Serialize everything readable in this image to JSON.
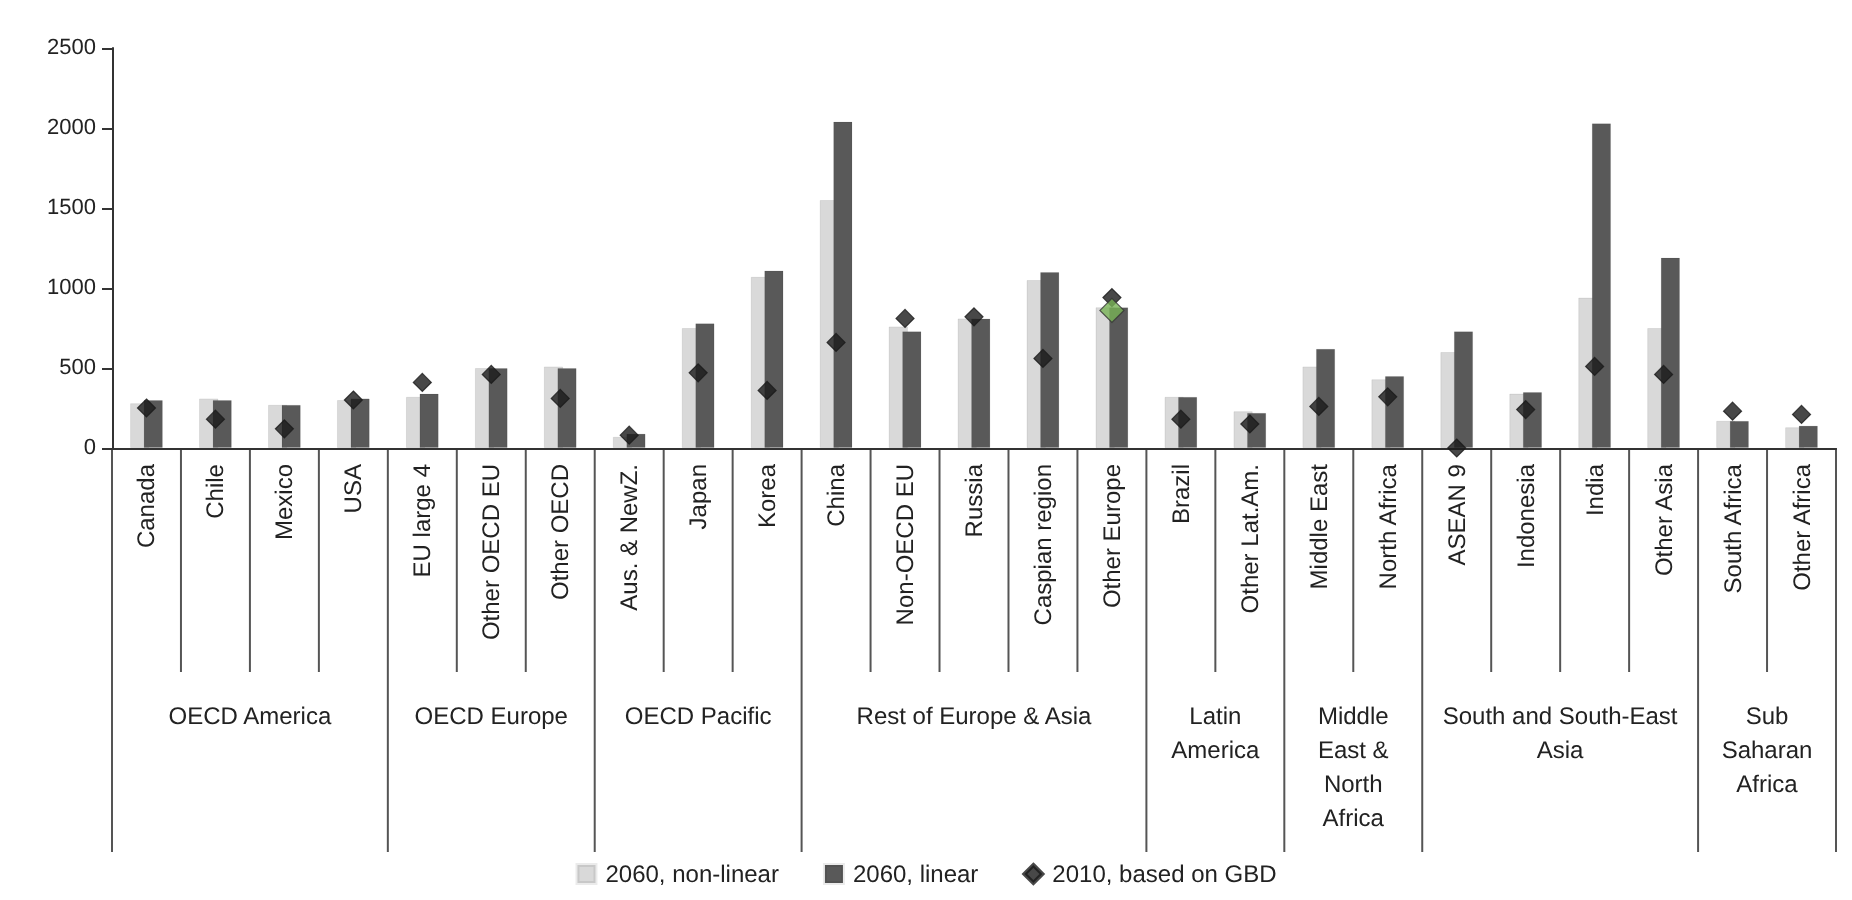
{
  "chart_data": {
    "type": "bar",
    "categories": [
      "Canada",
      "Chile",
      "Mexico",
      "USA",
      "EU large 4",
      "Other OECD EU",
      "Other OECD",
      "Aus. & NewZ.",
      "Japan",
      "Korea",
      "China",
      "Non-OECD EU",
      "Russia",
      "Caspian region",
      "Other Europe",
      "Brazil",
      "Other Lat.Am.",
      "Middle East",
      "North Africa",
      "ASEAN 9",
      "Indonesia",
      "India",
      "Other Asia",
      "South Africa",
      "Other Africa"
    ],
    "series": [
      {
        "name": "2060, non-linear",
        "color": "#d9d9d9",
        "values": [
          280,
          310,
          270,
          300,
          320,
          500,
          510,
          70,
          750,
          1070,
          1550,
          760,
          810,
          1050,
          880,
          320,
          230,
          510,
          430,
          600,
          340,
          940,
          750,
          170,
          130
        ]
      },
      {
        "name": "2060, linear",
        "color": "#595959",
        "values": [
          300,
          300,
          270,
          310,
          340,
          500,
          500,
          90,
          780,
          1110,
          2040,
          730,
          810,
          1100,
          880,
          320,
          220,
          620,
          450,
          730,
          350,
          2030,
          1190,
          170,
          140
        ]
      },
      {
        "name": "2010, based on GBD",
        "type": "scatter",
        "color": "#1a1a1a",
        "values": [
          250,
          180,
          120,
          300,
          410,
          460,
          310,
          80,
          470,
          360,
          660,
          810,
          820,
          560,
          940,
          180,
          150,
          260,
          320,
          0,
          240,
          510,
          460,
          230,
          210
        ]
      },
      {
        "type": "scatter",
        "color": "#77b255",
        "values": [
          null,
          null,
          null,
          null,
          null,
          null,
          null,
          null,
          null,
          null,
          null,
          null,
          null,
          null,
          860,
          null,
          null,
          null,
          null,
          null,
          null,
          null,
          null,
          null,
          null
        ]
      }
    ],
    "marker": "diamond",
    "ylim": [
      0,
      2500
    ],
    "yticks": [
      0,
      500,
      1000,
      1500,
      2000,
      2500
    ],
    "grid": false,
    "legend": "bottom",
    "annotations": [
      "OECD America",
      "OECD Europe",
      "OECD Pacific",
      "Rest of Europe & Asia",
      "Latin America",
      "Middle East & North Africa",
      "South and South-East Asia",
      "Sub Saharan Africa"
    ]
  }
}
